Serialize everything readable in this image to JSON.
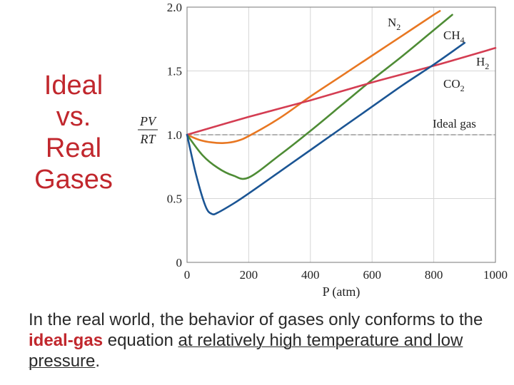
{
  "slide": {
    "title_lines": [
      "Ideal",
      "vs.",
      "Real",
      "Gases"
    ],
    "colors": {
      "title": "#c1272d",
      "highlight": "#c1272d",
      "body": "#2a2a2a"
    },
    "caption": {
      "part1": "In the real world, the behavior of gases only conforms to the ",
      "bold": "ideal-gas",
      "part2": " equation ",
      "underline": "at relatively high temperature and low pressure",
      "part3": "."
    }
  },
  "chart_data": {
    "type": "line",
    "title": "",
    "xlabel": "P (atm)",
    "ylabel_num": "PV",
    "ylabel_den": "RT",
    "xlim": [
      0,
      1000
    ],
    "ylim": [
      0,
      2.0
    ],
    "xticks": [
      "0",
      "200",
      "400",
      "600",
      "800",
      "1000"
    ],
    "yticks": [
      "0",
      "0.5",
      "1.0",
      "1.5",
      "2.0"
    ],
    "grid": true,
    "series": [
      {
        "id": "n2",
        "name": "N",
        "sub": "2",
        "color": "#e87722",
        "x": [
          0,
          40,
          80,
          120,
          160,
          200,
          300,
          400,
          500,
          600,
          700,
          800,
          820
        ],
        "y": [
          1.0,
          0.96,
          0.94,
          0.935,
          0.95,
          0.99,
          1.13,
          1.3,
          1.46,
          1.62,
          1.78,
          1.94,
          1.97
        ]
      },
      {
        "id": "ch4",
        "name": "CH",
        "sub": "4",
        "color": "#4e8c35",
        "x": [
          0,
          50,
          100,
          150,
          200,
          300,
          400,
          500,
          600,
          700,
          800,
          860
        ],
        "y": [
          1.0,
          0.84,
          0.74,
          0.68,
          0.665,
          0.84,
          1.03,
          1.23,
          1.43,
          1.62,
          1.82,
          1.94
        ]
      },
      {
        "id": "h2",
        "name": "H",
        "sub": "2",
        "color": "#d43d52",
        "x": [
          0,
          200,
          400,
          600,
          800,
          1000
        ],
        "y": [
          1.0,
          1.14,
          1.27,
          1.41,
          1.54,
          1.68
        ]
      },
      {
        "id": "co2",
        "name": "CO",
        "sub": "2",
        "color": "#1b5594",
        "x": [
          0,
          30,
          60,
          80,
          100,
          150,
          200,
          300,
          400,
          500,
          600,
          700,
          800,
          900
        ],
        "y": [
          1.0,
          0.68,
          0.44,
          0.38,
          0.39,
          0.46,
          0.54,
          0.71,
          0.88,
          1.05,
          1.22,
          1.39,
          1.55,
          1.72
        ]
      },
      {
        "id": "ideal",
        "name": "Ideal gas",
        "color": "#9a9a9a",
        "dashed": true,
        "x": [
          0,
          1000
        ],
        "y": [
          1.0,
          1.0
        ]
      }
    ]
  }
}
